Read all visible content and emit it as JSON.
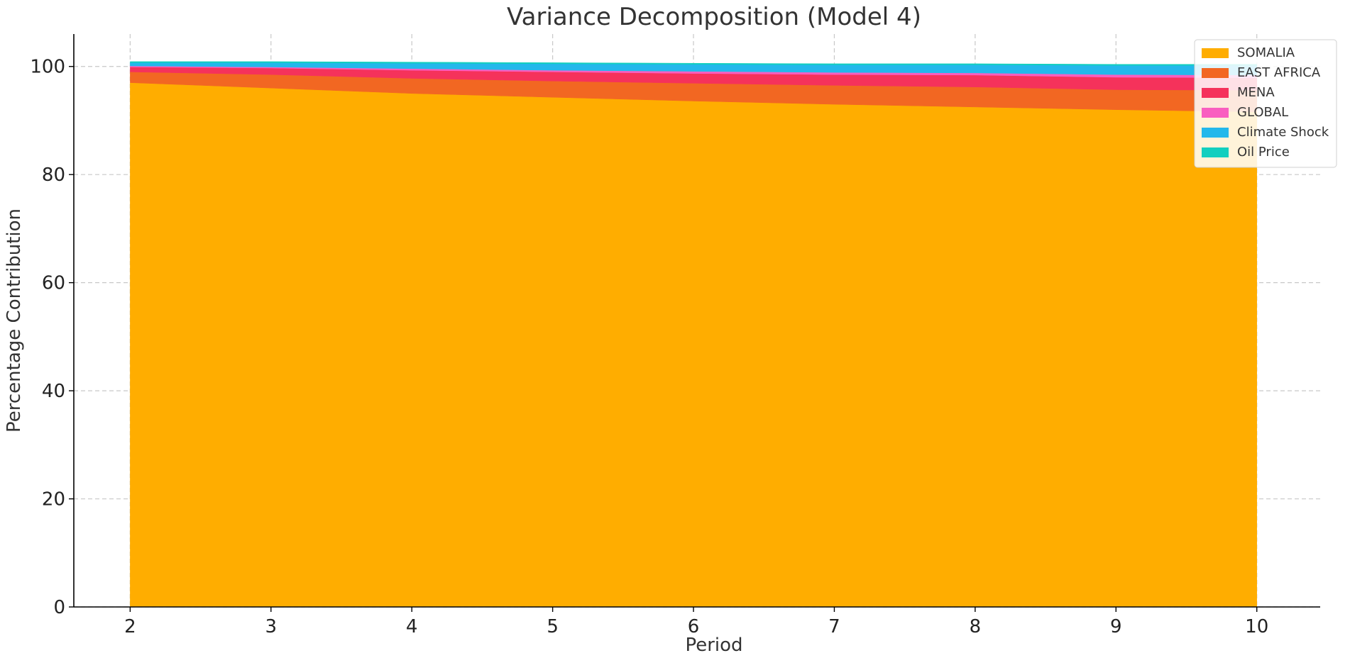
{
  "chart_data": {
    "type": "area",
    "stacked": true,
    "title": "Variance Decomposition (Model 4)",
    "xlabel": "Period",
    "ylabel": "Percentage Contribution",
    "x": [
      2,
      3,
      4,
      5,
      6,
      7,
      8,
      9,
      10
    ],
    "xlim": [
      1.6,
      10.45
    ],
    "ylim": [
      0,
      106
    ],
    "xticks": [
      2,
      3,
      4,
      5,
      6,
      7,
      8,
      9,
      10
    ],
    "yticks": [
      0,
      20,
      40,
      60,
      80,
      100
    ],
    "grid": true,
    "legend": "top-right",
    "series": [
      {
        "name": "SOMALIA",
        "color": "#FFAD00",
        "values": [
          97.0,
          96.0,
          95.0,
          94.3,
          93.6,
          93.0,
          92.5,
          92.0,
          91.6
        ]
      },
      {
        "name": "EAST AFRICA",
        "color": "#F26722",
        "values": [
          2.0,
          2.5,
          2.8,
          3.0,
          3.3,
          3.5,
          3.7,
          3.7,
          4.0
        ]
      },
      {
        "name": "MENA",
        "color": "#F5325B",
        "values": [
          0.9,
          1.2,
          1.5,
          1.7,
          1.8,
          2.0,
          2.2,
          2.3,
          2.3
        ]
      },
      {
        "name": "GLOBAL",
        "color": "#F95EC0",
        "values": [
          0.2,
          0.2,
          0.3,
          0.3,
          0.4,
          0.4,
          0.4,
          0.5,
          0.5
        ]
      },
      {
        "name": "Climate Shock",
        "color": "#23B8EB",
        "values": [
          0.6,
          0.8,
          1.0,
          1.2,
          1.3,
          1.4,
          1.5,
          1.7,
          1.8
        ]
      },
      {
        "name": "Oil Price",
        "color": "#12CFBF",
        "values": [
          0.2,
          0.2,
          0.2,
          0.2,
          0.2,
          0.2,
          0.2,
          0.2,
          0.2
        ]
      }
    ]
  }
}
